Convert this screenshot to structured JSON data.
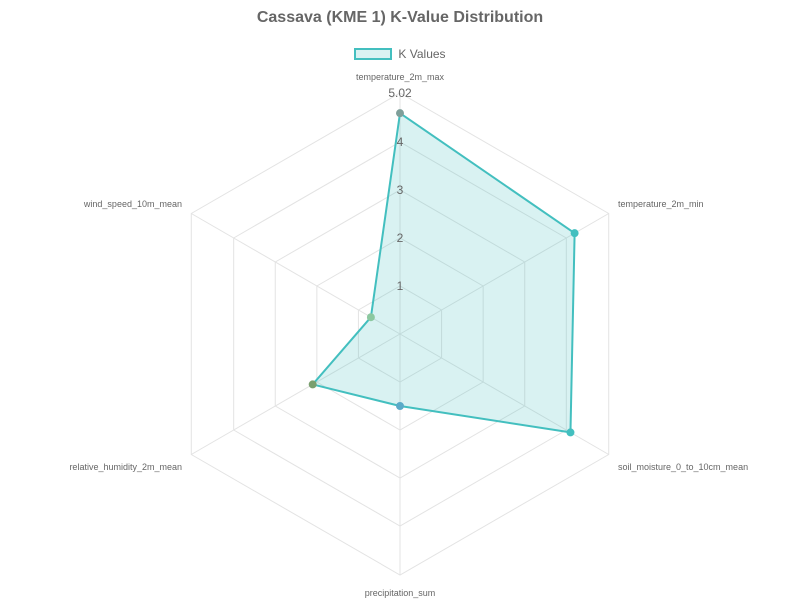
{
  "chart_data": {
    "type": "radar",
    "title": "Cassava (KME 1) K-Value Distribution",
    "axes": [
      "temperature_2m_max",
      "temperature_2m_min",
      "soil_moisture_0_to_10cm_mean",
      "precipitation_sum",
      "relative_humidity_2m_mean",
      "wind_speed_10m_mean"
    ],
    "series": [
      {
        "name": "K Values",
        "values": [
          4.6,
          4.2,
          4.1,
          1.5,
          2.1,
          0.7
        ],
        "color": "#43bfbf",
        "fill": "rgba(67,191,191,0.2)",
        "point_colors": [
          "#7f9f9a",
          "#43bfbf",
          "#43bfbf",
          "#5aaac8",
          "#7a9f6f",
          "#8cc8a0"
        ]
      }
    ],
    "r_ticks": [
      "1",
      "2",
      "3",
      "4",
      "5.02"
    ],
    "r_tick_values": [
      1,
      2,
      3,
      4,
      5.02
    ],
    "r_max": 5.02,
    "grid": true,
    "legend_position": "top"
  }
}
